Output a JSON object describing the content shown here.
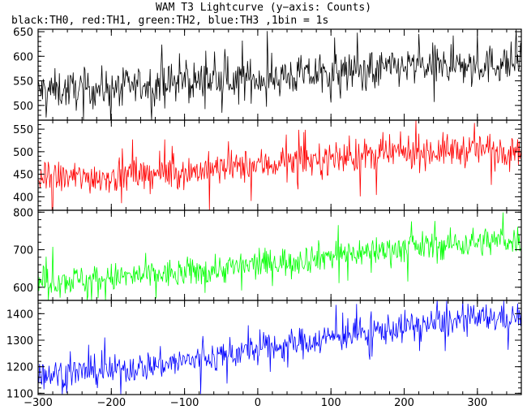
{
  "chart_data": {
    "type": "line",
    "title": "WAM T3 Lightcurve (y−axis: Counts)",
    "subtitle": "black:TH0, red:TH1, green:TH2, blue:TH3 ,1bin = 1s",
    "x": {
      "range": [
        -300,
        360
      ],
      "ticks": [
        -300,
        -200,
        -100,
        0,
        100,
        200,
        300
      ],
      "tick_labels": [
        "−300",
        "−200",
        "−100",
        "0",
        "100",
        "200",
        "300"
      ]
    },
    "panels": [
      {
        "series": "TH0",
        "color": "#000000",
        "ylim": [
          470,
          655
        ],
        "yticks": [
          500,
          550,
          600,
          650
        ],
        "trend": [
          [
            -300,
            530
          ],
          [
            -200,
            535
          ],
          [
            -100,
            548
          ],
          [
            0,
            555
          ],
          [
            100,
            565
          ],
          [
            200,
            578
          ],
          [
            300,
            582
          ],
          [
            360,
            588
          ]
        ],
        "noise": 28,
        "spike_prob": 0.04
      },
      {
        "series": "TH1",
        "color": "#ff0000",
        "ylim": [
          370,
          570
        ],
        "yticks": [
          400,
          450,
          500,
          550
        ],
        "trend": [
          [
            -300,
            440
          ],
          [
            -200,
            445
          ],
          [
            -100,
            455
          ],
          [
            0,
            470
          ],
          [
            100,
            485
          ],
          [
            200,
            498
          ],
          [
            300,
            505
          ],
          [
            360,
            510
          ]
        ],
        "noise": 26,
        "spike_prob": 0.04
      },
      {
        "series": "TH2",
        "color": "#00ff00",
        "ylim": [
          565,
          805
        ],
        "yticks": [
          600,
          700,
          800
        ],
        "trend": [
          [
            -300,
            615
          ],
          [
            -200,
            625
          ],
          [
            -100,
            638
          ],
          [
            0,
            660
          ],
          [
            100,
            685
          ],
          [
            200,
            705
          ],
          [
            300,
            720
          ],
          [
            360,
            728
          ]
        ],
        "noise": 28,
        "spike_prob": 0.04
      },
      {
        "series": "TH3",
        "color": "#0000ff",
        "ylim": [
          1095,
          1450
        ],
        "yticks": [
          1100,
          1200,
          1300,
          1400
        ],
        "trend": [
          [
            -300,
            1170
          ],
          [
            -200,
            1185
          ],
          [
            -100,
            1220
          ],
          [
            0,
            1265
          ],
          [
            100,
            1310
          ],
          [
            200,
            1350
          ],
          [
            300,
            1380
          ],
          [
            360,
            1390
          ]
        ],
        "noise": 40,
        "spike_prob": 0.04
      }
    ]
  }
}
